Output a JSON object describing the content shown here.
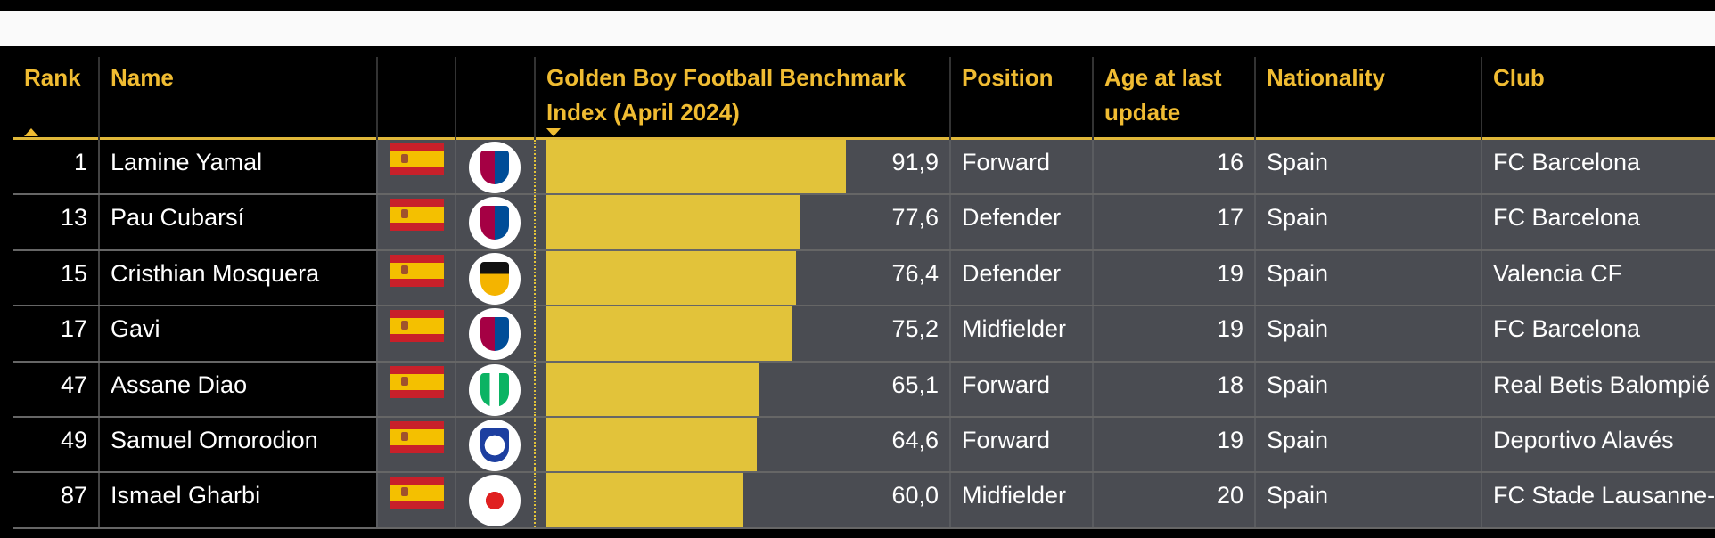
{
  "headers": {
    "rank": "Rank",
    "name": "Name",
    "index": "Golden Boy Football Benchmark Index (April 2024)",
    "position": "Position",
    "age": "Age at last update",
    "nationality": "Nationality",
    "club": "Club"
  },
  "colors": {
    "accent": "#f0bc32",
    "bar": "#e2c33a",
    "cell_bg": "#4a4c52"
  },
  "rows": [
    {
      "rank": "1",
      "name": "Lamine Yamal",
      "flag": "spain-flag",
      "logo": "fc-barcelona-logo",
      "index": 91.9,
      "index_label": "91,9",
      "position": "Forward",
      "age": "16",
      "nationality": "Spain",
      "club": "FC Barcelona"
    },
    {
      "rank": "13",
      "name": "Pau Cubarsí",
      "flag": "spain-flag",
      "logo": "fc-barcelona-logo",
      "index": 77.6,
      "index_label": "77,6",
      "position": "Defender",
      "age": "17",
      "nationality": "Spain",
      "club": "FC Barcelona"
    },
    {
      "rank": "15",
      "name": "Cristhian Mosquera",
      "flag": "spain-flag",
      "logo": "valencia-cf-logo",
      "index": 76.4,
      "index_label": "76,4",
      "position": "Defender",
      "age": "19",
      "nationality": "Spain",
      "club": "Valencia CF"
    },
    {
      "rank": "17",
      "name": "Gavi",
      "flag": "spain-flag",
      "logo": "fc-barcelona-logo",
      "index": 75.2,
      "index_label": "75,2",
      "position": "Midfielder",
      "age": "19",
      "nationality": "Spain",
      "club": "FC Barcelona"
    },
    {
      "rank": "47",
      "name": "Assane Diao",
      "flag": "spain-flag",
      "logo": "real-betis-logo",
      "index": 65.1,
      "index_label": "65,1",
      "position": "Forward",
      "age": "18",
      "nationality": "Spain",
      "club": "Real Betis Balompié"
    },
    {
      "rank": "49",
      "name": "Samuel Omorodion",
      "flag": "spain-flag",
      "logo": "deportivo-alaves-logo",
      "index": 64.6,
      "index_label": "64,6",
      "position": "Forward",
      "age": "19",
      "nationality": "Spain",
      "club": "Deportivo Alavés"
    },
    {
      "rank": "87",
      "name": "Ismael Gharbi",
      "flag": "spain-flag",
      "logo": "fc-stade-lausanne-ouchy-logo",
      "index": 60.0,
      "index_label": "60,0",
      "position": "Midfielder",
      "age": "20",
      "nationality": "Spain",
      "club": "FC Stade Lausanne-Ouchy"
    }
  ]
}
